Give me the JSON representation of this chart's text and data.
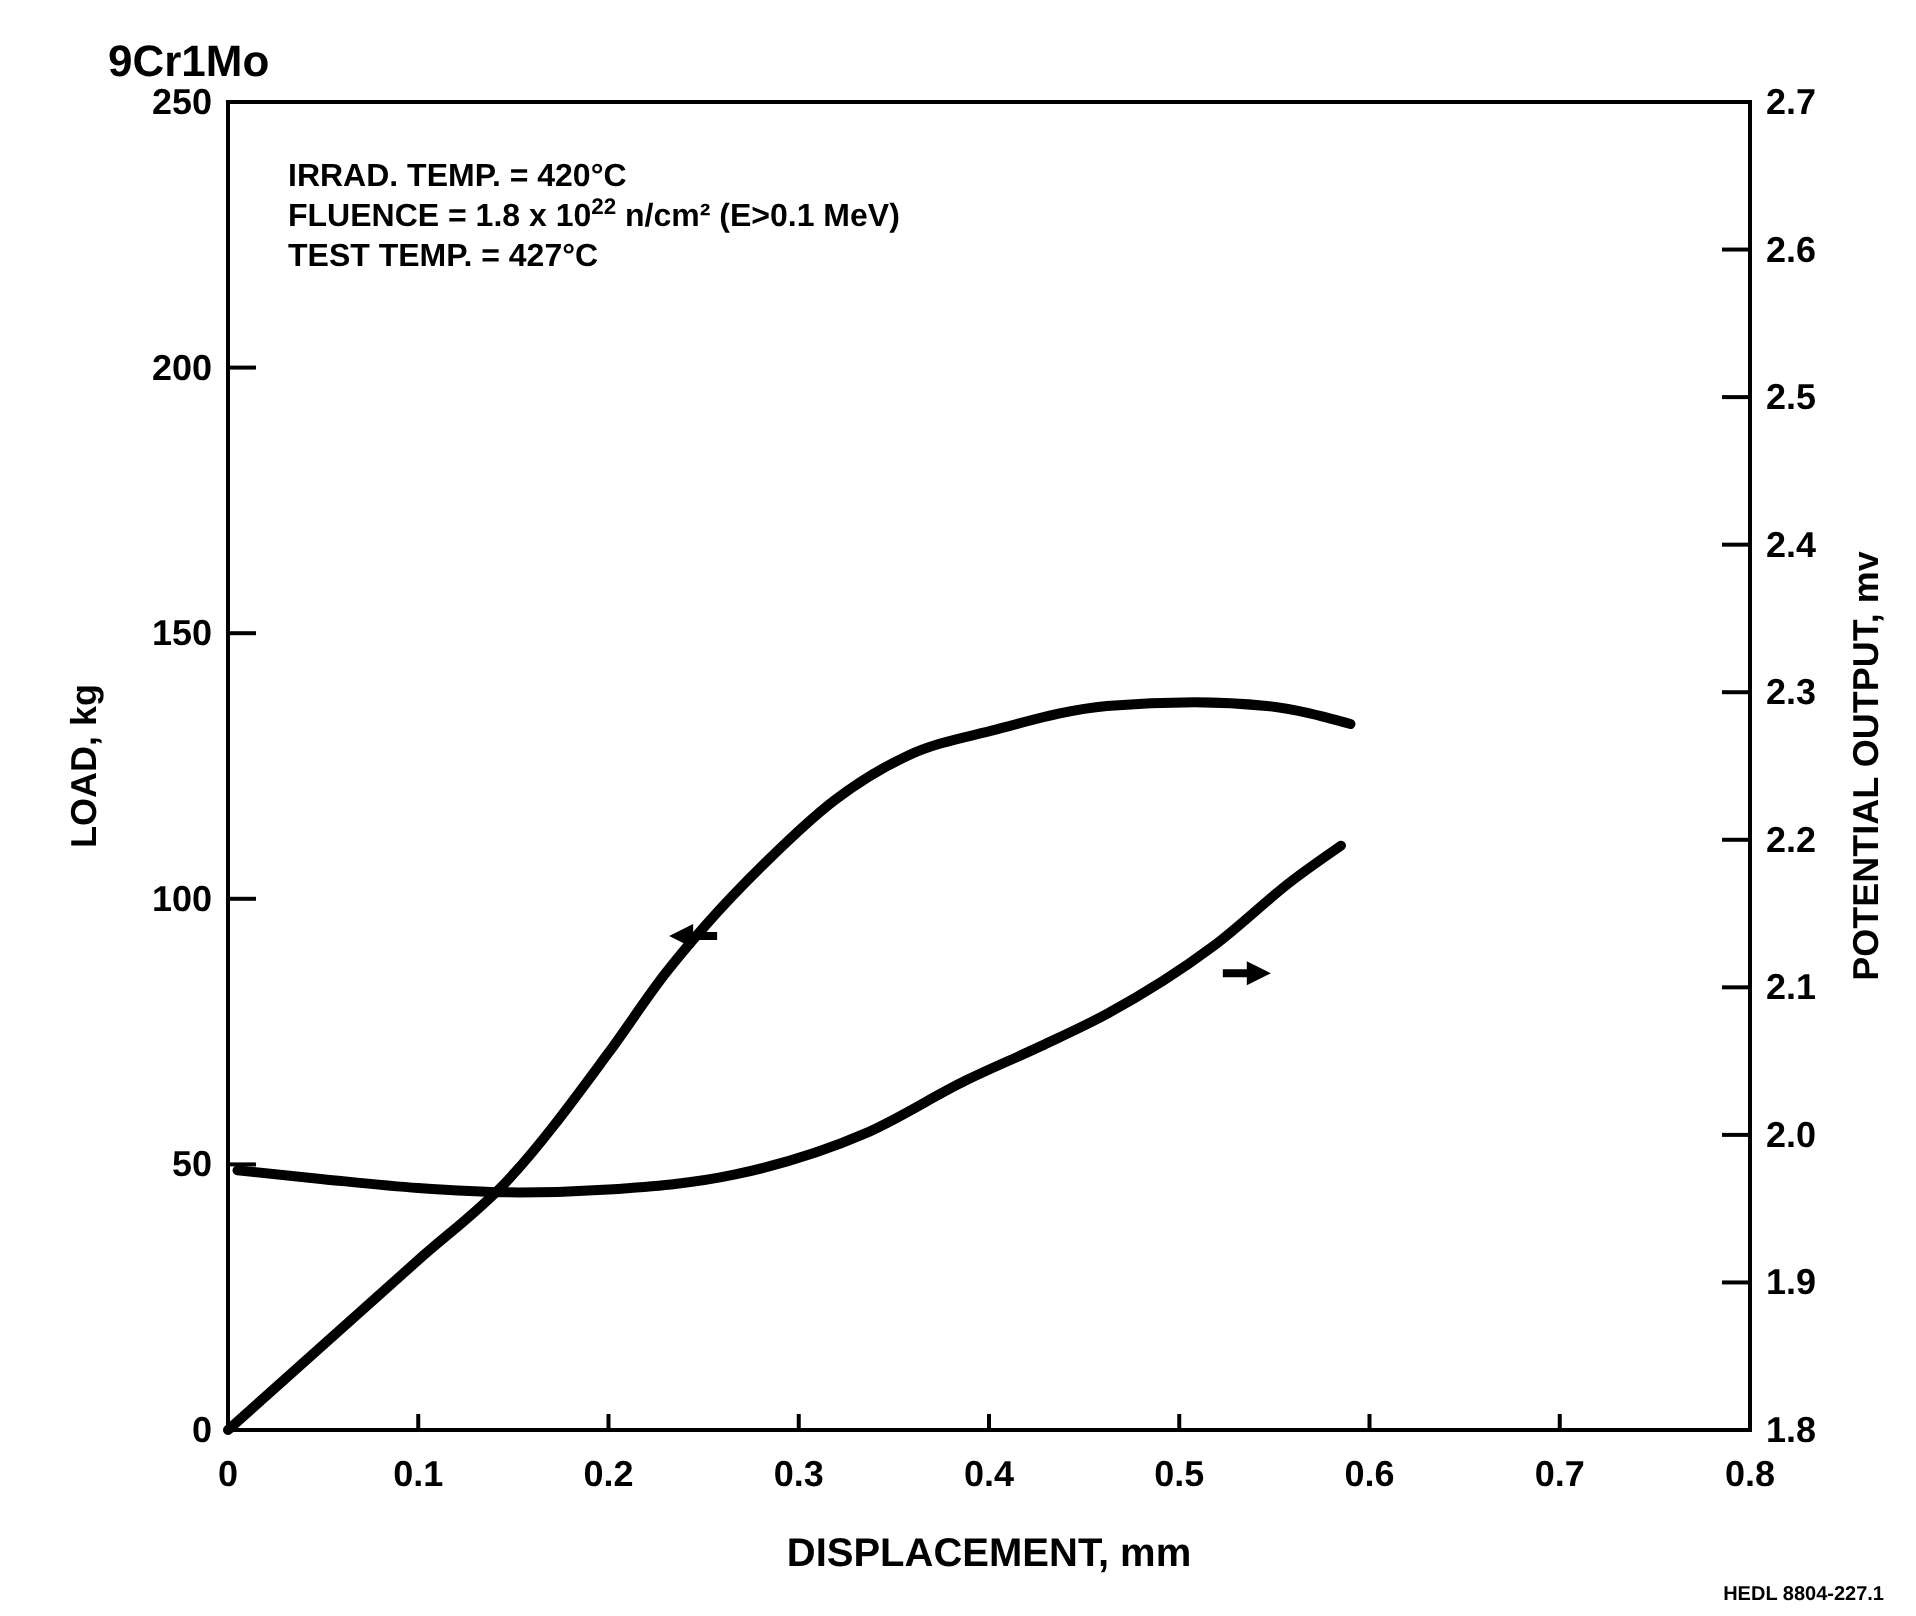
{
  "chart_data": {
    "type": "line",
    "title": "9Cr1Mo",
    "xlabel": "DISPLACEMENT, mm",
    "ylabel": "LOAD, kg",
    "y2label": "POTENTIAL OUTPUT, mv",
    "xlim": [
      0,
      0.8
    ],
    "xticks": [
      0,
      0.1,
      0.2,
      0.3,
      0.4,
      0.5,
      0.6,
      0.7,
      0.8
    ],
    "ylim": [
      0,
      250
    ],
    "yticks": [
      0,
      50,
      100,
      150,
      200,
      250
    ],
    "y2lim": [
      1.8,
      2.7
    ],
    "y2ticks": [
      1.8,
      1.9,
      {
        "value": 2.0,
        "label": "2.0"
      },
      2.1,
      2.2,
      2.3,
      2.4,
      2.5,
      2.6,
      2.7
    ],
    "grid": false,
    "marker": "none",
    "line_style": "solid",
    "series": [
      {
        "color": "#000000",
        "x": [
          0,
          0.05,
          0.1,
          0.147,
          0.2,
          0.23,
          0.251,
          0.283,
          0.319,
          0.357,
          0.403,
          0.462,
          0.508,
          0.546,
          0.59
        ],
        "values": [
          0,
          16,
          32,
          47,
          71,
          86,
          95,
          107,
          118.6,
          126.9,
          131.8,
          136.3,
          137,
          136.3,
          132.9
        ]
      },
      {
        "color": "#000000",
        "axis": "y2",
        "x": [
          0.005,
          0.05,
          0.1,
          0.153,
          0.2,
          0.266,
          0.335,
          0.388,
          0.427,
          0.462,
          0.518,
          0.56,
          0.585
        ],
        "values": [
          1.976,
          1.97,
          1.964,
          1.961,
          1.963,
          1.973,
          2.001,
          2.037,
          2.06,
          2.082,
          2.128,
          2.173,
          2.196
        ]
      }
    ],
    "annotations": [
      "IRRAD. TEMP. = 420°C",
      "FLUENCE = 1.8 x 10$^{22}$ n/cm² (E>0.1 MeV)",
      "TEST TEMP. = 427°C",
      "HEDL 8804-227.1"
    ]
  }
}
